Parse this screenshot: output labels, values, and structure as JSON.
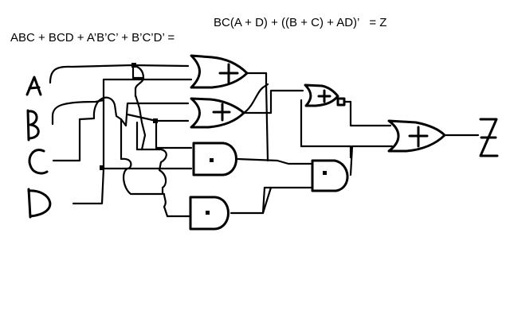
{
  "equations": {
    "left": "ABC + BCD + A’B’C’ + B’C’D’ =",
    "right": "BC(A + D) + ((B + C) + AD)’   = Z"
  }
}
